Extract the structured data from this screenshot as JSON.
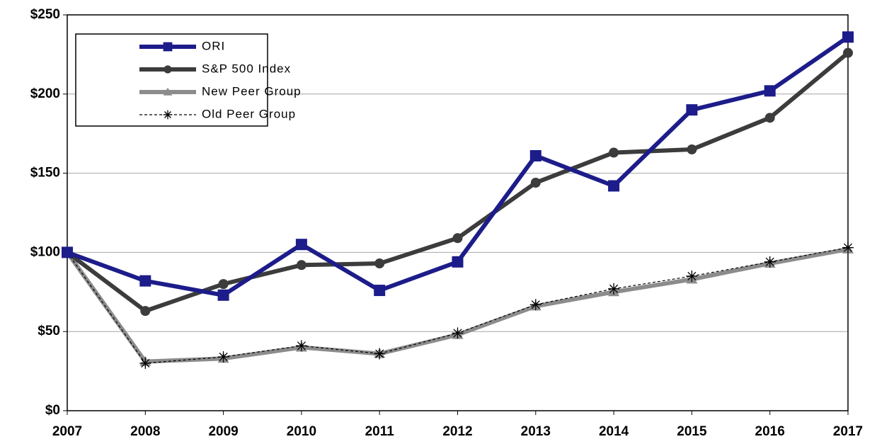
{
  "chart_data": {
    "type": "line",
    "categories": [
      "2007",
      "2008",
      "2009",
      "2010",
      "2011",
      "2012",
      "2013",
      "2014",
      "2015",
      "2016",
      "2017"
    ],
    "series": [
      {
        "name": "ORI",
        "color": "#1c1c8a",
        "marker": "square",
        "width": 6,
        "values": [
          100,
          82,
          73,
          105,
          76,
          94,
          161,
          142,
          190,
          202,
          236
        ]
      },
      {
        "name": "S&P 500 Index",
        "color": "#3c3c3c",
        "marker": "circle",
        "width": 6,
        "values": [
          100,
          63,
          80,
          92,
          93,
          109,
          144,
          163,
          165,
          185,
          226
        ]
      },
      {
        "name": "New Peer Group",
        "color": "#8c8c8c",
        "marker": "triangle",
        "width": 6,
        "values": [
          100,
          31,
          33,
          40,
          36,
          48,
          66,
          75,
          83,
          93,
          102
        ]
      },
      {
        "name": "Old Peer Group",
        "color": "#000000",
        "marker": "asterisk",
        "width": 1.2,
        "dash": true,
        "values": [
          100,
          30,
          34,
          41,
          36,
          49,
          67,
          77,
          85,
          94,
          103
        ]
      }
    ],
    "ylim": [
      0,
      250
    ],
    "yticks": [
      {
        "value": 0,
        "label": "$0"
      },
      {
        "value": 50,
        "label": "$50"
      },
      {
        "value": 100,
        "label": "$100"
      },
      {
        "value": 150,
        "label": "$150"
      },
      {
        "value": 200,
        "label": "$200"
      },
      {
        "value": 250,
        "label": "$250"
      }
    ],
    "grid": true,
    "legend": "upper left"
  }
}
